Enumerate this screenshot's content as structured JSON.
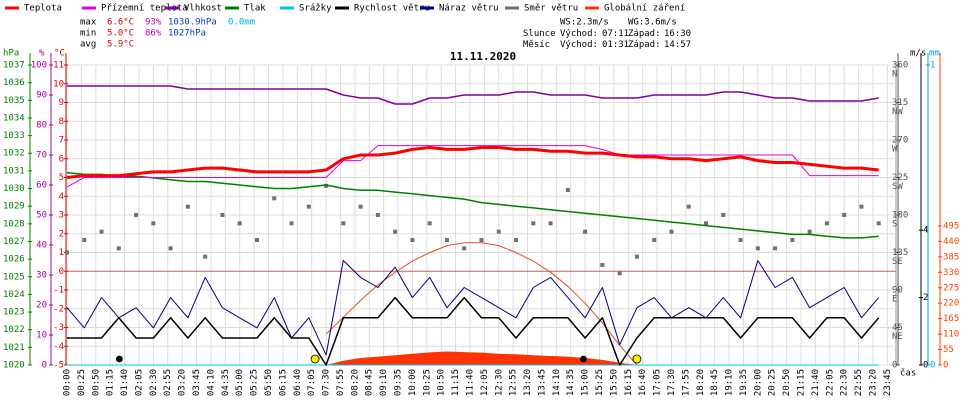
{
  "chart_data": {
    "type": "line",
    "title": "11.11.2020",
    "xlabel": "čas",
    "x": [
      "00:00",
      "00:30",
      "01:00",
      "01:30",
      "02:00",
      "02:30",
      "03:00",
      "03:30",
      "04:00",
      "04:30",
      "05:00",
      "05:30",
      "06:00",
      "06:30",
      "07:00",
      "07:30",
      "08:00",
      "08:30",
      "09:00",
      "09:30",
      "10:00",
      "10:30",
      "11:00",
      "11:30",
      "12:00",
      "12:30",
      "13:00",
      "13:30",
      "14:00",
      "14:30",
      "15:00",
      "15:30",
      "16:00",
      "16:30",
      "17:00",
      "17:30",
      "18:00",
      "18:30",
      "19:00",
      "19:30",
      "20:00",
      "20:30",
      "21:00",
      "21:30",
      "22:00",
      "22:30",
      "23:00",
      "23:30"
    ],
    "xticks": [
      "00:00",
      "00:25",
      "00:50",
      "01:15",
      "01:40",
      "02:05",
      "02:30",
      "02:55",
      "03:20",
      "03:45",
      "04:10",
      "04:35",
      "05:00",
      "05:25",
      "05:50",
      "06:15",
      "06:40",
      "07:05",
      "07:30",
      "07:55",
      "08:20",
      "08:45",
      "09:10",
      "09:35",
      "10:00",
      "10:25",
      "10:50",
      "11:15",
      "11:40",
      "12:05",
      "12:30",
      "12:55",
      "13:20",
      "13:45",
      "14:10",
      "14:35",
      "15:00",
      "15:25",
      "15:50",
      "16:15",
      "16:40",
      "17:05",
      "17:30",
      "17:55",
      "18:20",
      "18:45",
      "19:10",
      "19:35",
      "20:00",
      "20:25",
      "20:50",
      "21:15",
      "21:40",
      "22:05",
      "22:30",
      "22:55",
      "23:20",
      "23:45"
    ],
    "grid": true,
    "axes": {
      "hpa": {
        "label": "hPa",
        "color": "#008000",
        "lim": [
          1020,
          1037
        ],
        "ticks": [
          1020,
          1021,
          1022,
          1023,
          1024,
          1025,
          1026,
          1027,
          1028,
          1029,
          1030,
          1031,
          1032,
          1033,
          1034,
          1035,
          1036,
          1037
        ]
      },
      "pct": {
        "label": "%",
        "color": "#a000a0",
        "lim": [
          0,
          100
        ],
        "ticks": [
          0,
          10,
          20,
          30,
          40,
          50,
          60,
          70,
          80,
          90,
          100
        ]
      },
      "temp": {
        "label": "°C",
        "color": "#e00000",
        "lim": [
          -5,
          11
        ],
        "ticks": [
          -5,
          -4,
          -3,
          -2,
          -1,
          0,
          1,
          2,
          3,
          4,
          5,
          6,
          7,
          8,
          9,
          10,
          11
        ]
      },
      "dir": {
        "color": "#505050",
        "lim": [
          0,
          360
        ],
        "ticks": [
          0,
          45,
          90,
          135,
          180,
          225,
          270,
          315,
          360
        ],
        "compass": [
          null,
          "NE",
          "E",
          "SE",
          "S",
          "SW",
          "W",
          "NW",
          "N"
        ]
      },
      "ms": {
        "label": "m/s",
        "color": "#000000",
        "lim": [
          0,
          8.9
        ],
        "ticks": [
          0,
          2,
          4
        ]
      },
      "mm": {
        "label": "mm",
        "color": "#00a0e0",
        "lim": [
          0,
          1
        ],
        "ticks": [
          0,
          1
        ]
      },
      "rad": {
        "color": "#ff4000",
        "lim": [
          0,
          1068
        ],
        "ticks": [
          0,
          55,
          110,
          165,
          220,
          275,
          330,
          385,
          440,
          495
        ]
      }
    },
    "series": [
      {
        "name": "Teplota",
        "color": "#ff0000",
        "axis": "temp",
        "kind": "line",
        "values": [
          5.0,
          5.1,
          5.1,
          5.1,
          5.2,
          5.3,
          5.3,
          5.4,
          5.5,
          5.5,
          5.4,
          5.3,
          5.3,
          5.3,
          5.3,
          5.4,
          6.0,
          6.2,
          6.2,
          6.3,
          6.5,
          6.6,
          6.5,
          6.5,
          6.6,
          6.6,
          6.5,
          6.5,
          6.4,
          6.4,
          6.3,
          6.3,
          6.2,
          6.1,
          6.1,
          6.0,
          6.0,
          5.9,
          6.0,
          6.1,
          5.9,
          5.8,
          5.8,
          5.7,
          5.6,
          5.5,
          5.5,
          5.4
        ]
      },
      {
        "name": "Přízemní teplota",
        "color": "#e000e0",
        "axis": "temp",
        "kind": "line",
        "values": [
          4.5,
          5.0,
          5.0,
          5.0,
          5.0,
          5.0,
          5.0,
          5.0,
          5.0,
          5.0,
          5.0,
          5.0,
          5.0,
          5.0,
          5.0,
          5.0,
          5.9,
          5.9,
          6.7,
          6.7,
          6.7,
          6.7,
          6.7,
          6.7,
          6.7,
          6.7,
          6.7,
          6.7,
          6.7,
          6.7,
          6.7,
          6.5,
          6.2,
          6.2,
          6.2,
          6.2,
          6.2,
          6.2,
          6.2,
          6.2,
          6.2,
          6.2,
          6.2,
          5.1,
          5.1,
          5.1,
          5.1,
          5.1
        ]
      },
      {
        "name": "Vlhkost",
        "color": "#8000a0",
        "axis": "pct",
        "kind": "line",
        "values": [
          93,
          93,
          93,
          93,
          93,
          93,
          93,
          92,
          92,
          92,
          92,
          92,
          92,
          92,
          92,
          92,
          90,
          89,
          89,
          87,
          87,
          89,
          89,
          90,
          90,
          90,
          91,
          91,
          90,
          90,
          90,
          89,
          89,
          89,
          90,
          90,
          90,
          90,
          91,
          91,
          90,
          89,
          89,
          88,
          88,
          88,
          88,
          89
        ]
      },
      {
        "name": "Tlak",
        "color": "#008000",
        "axis": "hpa",
        "kind": "line",
        "values": [
          1030.9,
          1030.8,
          1030.8,
          1030.7,
          1030.7,
          1030.6,
          1030.5,
          1030.4,
          1030.4,
          1030.3,
          1030.2,
          1030.1,
          1030.0,
          1030.0,
          1030.1,
          1030.2,
          1030.0,
          1029.9,
          1029.9,
          1029.8,
          1029.7,
          1029.6,
          1029.5,
          1029.4,
          1029.2,
          1029.1,
          1029.0,
          1028.9,
          1028.8,
          1028.7,
          1028.6,
          1028.5,
          1028.4,
          1028.3,
          1028.2,
          1028.1,
          1028.0,
          1027.9,
          1027.8,
          1027.7,
          1027.6,
          1027.5,
          1027.4,
          1027.4,
          1027.3,
          1027.2,
          1027.2,
          1027.3
        ]
      },
      {
        "name": "Srážky",
        "color": "#00c0ff",
        "axis": "mm",
        "kind": "line",
        "values": [
          0,
          0,
          0,
          0,
          0,
          0,
          0,
          0,
          0,
          0,
          0,
          0,
          0,
          0,
          0,
          0,
          0,
          0,
          0,
          0,
          0,
          0,
          0,
          0,
          0,
          0,
          0,
          0,
          0,
          0,
          0,
          0,
          0,
          0,
          0,
          0,
          0,
          0,
          0,
          0,
          0,
          0,
          0,
          0,
          0,
          0,
          0,
          0
        ]
      },
      {
        "name": "Rychlost větru",
        "color": "#000000",
        "axis": "ms",
        "kind": "line",
        "values": [
          0.8,
          0.8,
          0.8,
          1.4,
          0.8,
          0.8,
          1.4,
          0.8,
          1.4,
          0.8,
          0.8,
          0.8,
          1.4,
          0.8,
          0.8,
          0,
          1.4,
          1.4,
          1.4,
          2.0,
          1.4,
          1.4,
          1.4,
          2.0,
          1.4,
          1.4,
          0.8,
          1.4,
          1.4,
          1.4,
          0.8,
          1.4,
          0,
          0.8,
          1.4,
          1.4,
          1.4,
          1.4,
          1.4,
          0.8,
          1.4,
          1.4,
          1.4,
          0.8,
          1.4,
          1.4,
          0.8,
          1.4
        ]
      },
      {
        "name": "Náraz větru",
        "color": "#000080",
        "axis": "ms",
        "kind": "line",
        "values": [
          1.7,
          1.1,
          2.0,
          1.4,
          1.7,
          1.1,
          2.0,
          1.4,
          2.6,
          1.7,
          1.4,
          1.1,
          2.0,
          0.8,
          1.4,
          0.3,
          3.1,
          2.6,
          2.3,
          2.9,
          2.0,
          2.6,
          1.7,
          2.3,
          2.0,
          1.7,
          1.4,
          2.3,
          2.6,
          2.0,
          1.4,
          2.3,
          0.6,
          1.7,
          2.0,
          1.4,
          1.7,
          1.4,
          2.0,
          1.4,
          3.1,
          2.3,
          2.6,
          1.7,
          2.0,
          2.3,
          1.4,
          2.0
        ]
      },
      {
        "name": "Směr větru",
        "color": "#707070",
        "axis": "dir",
        "kind": "points",
        "values": [
          135,
          150,
          160,
          140,
          180,
          170,
          140,
          190,
          130,
          180,
          170,
          150,
          200,
          170,
          190,
          215,
          170,
          190,
          180,
          160,
          150,
          170,
          150,
          140,
          150,
          160,
          150,
          170,
          170,
          210,
          160,
          120,
          110,
          130,
          150,
          160,
          190,
          170,
          180,
          150,
          140,
          140,
          150,
          160,
          170,
          180,
          190,
          170
        ]
      },
      {
        "name": "Globální záření",
        "color": "#ff3300",
        "axis": "rad",
        "kind": "area",
        "values": [
          0,
          0,
          0,
          0,
          0,
          0,
          0,
          0,
          0,
          0,
          0,
          0,
          0,
          0,
          0,
          0,
          15,
          25,
          30,
          35,
          40,
          45,
          48,
          46,
          44,
          40,
          38,
          35,
          32,
          30,
          25,
          18,
          8,
          0,
          0,
          0,
          0,
          0,
          0,
          0,
          0,
          0,
          0,
          0,
          0,
          0,
          0,
          0
        ]
      },
      {
        "color": "#e05020",
        "axis": "rad",
        "kind": "line",
        "values": [
          null,
          null,
          null,
          null,
          null,
          null,
          null,
          null,
          null,
          null,
          null,
          null,
          null,
          null,
          null,
          110,
          170,
          230,
          285,
          330,
          370,
          400,
          425,
          435,
          435,
          425,
          400,
          370,
          330,
          280,
          220,
          150,
          70,
          0,
          null,
          null,
          null,
          null,
          null,
          null,
          null,
          null,
          null,
          null,
          null,
          null,
          null,
          null
        ]
      }
    ],
    "stats": [
      {
        "label": "max",
        "temp": "6.6°C",
        "hum": "93%",
        "pres": "1030.9hPa",
        "rain": "0.0mm"
      },
      {
        "label": "min",
        "temp": "5.0°C",
        "hum": "86%",
        "pres": "1027hPa"
      },
      {
        "label": "avg",
        "temp": "5.9°C"
      }
    ],
    "info": {
      "ws": "WS:2.3m/s",
      "wg": "WG:3.6m/s",
      "sun": {
        "label": "Slunce",
        "rise_label": "Východ:",
        "rise": "07:11",
        "set_label": "Západ:",
        "set": "16:30"
      },
      "moon": {
        "label": "Měsíc",
        "rise_label": "Východ:",
        "rise": "01:31",
        "set_label": "Západ:",
        "set": "14:57"
      }
    }
  }
}
